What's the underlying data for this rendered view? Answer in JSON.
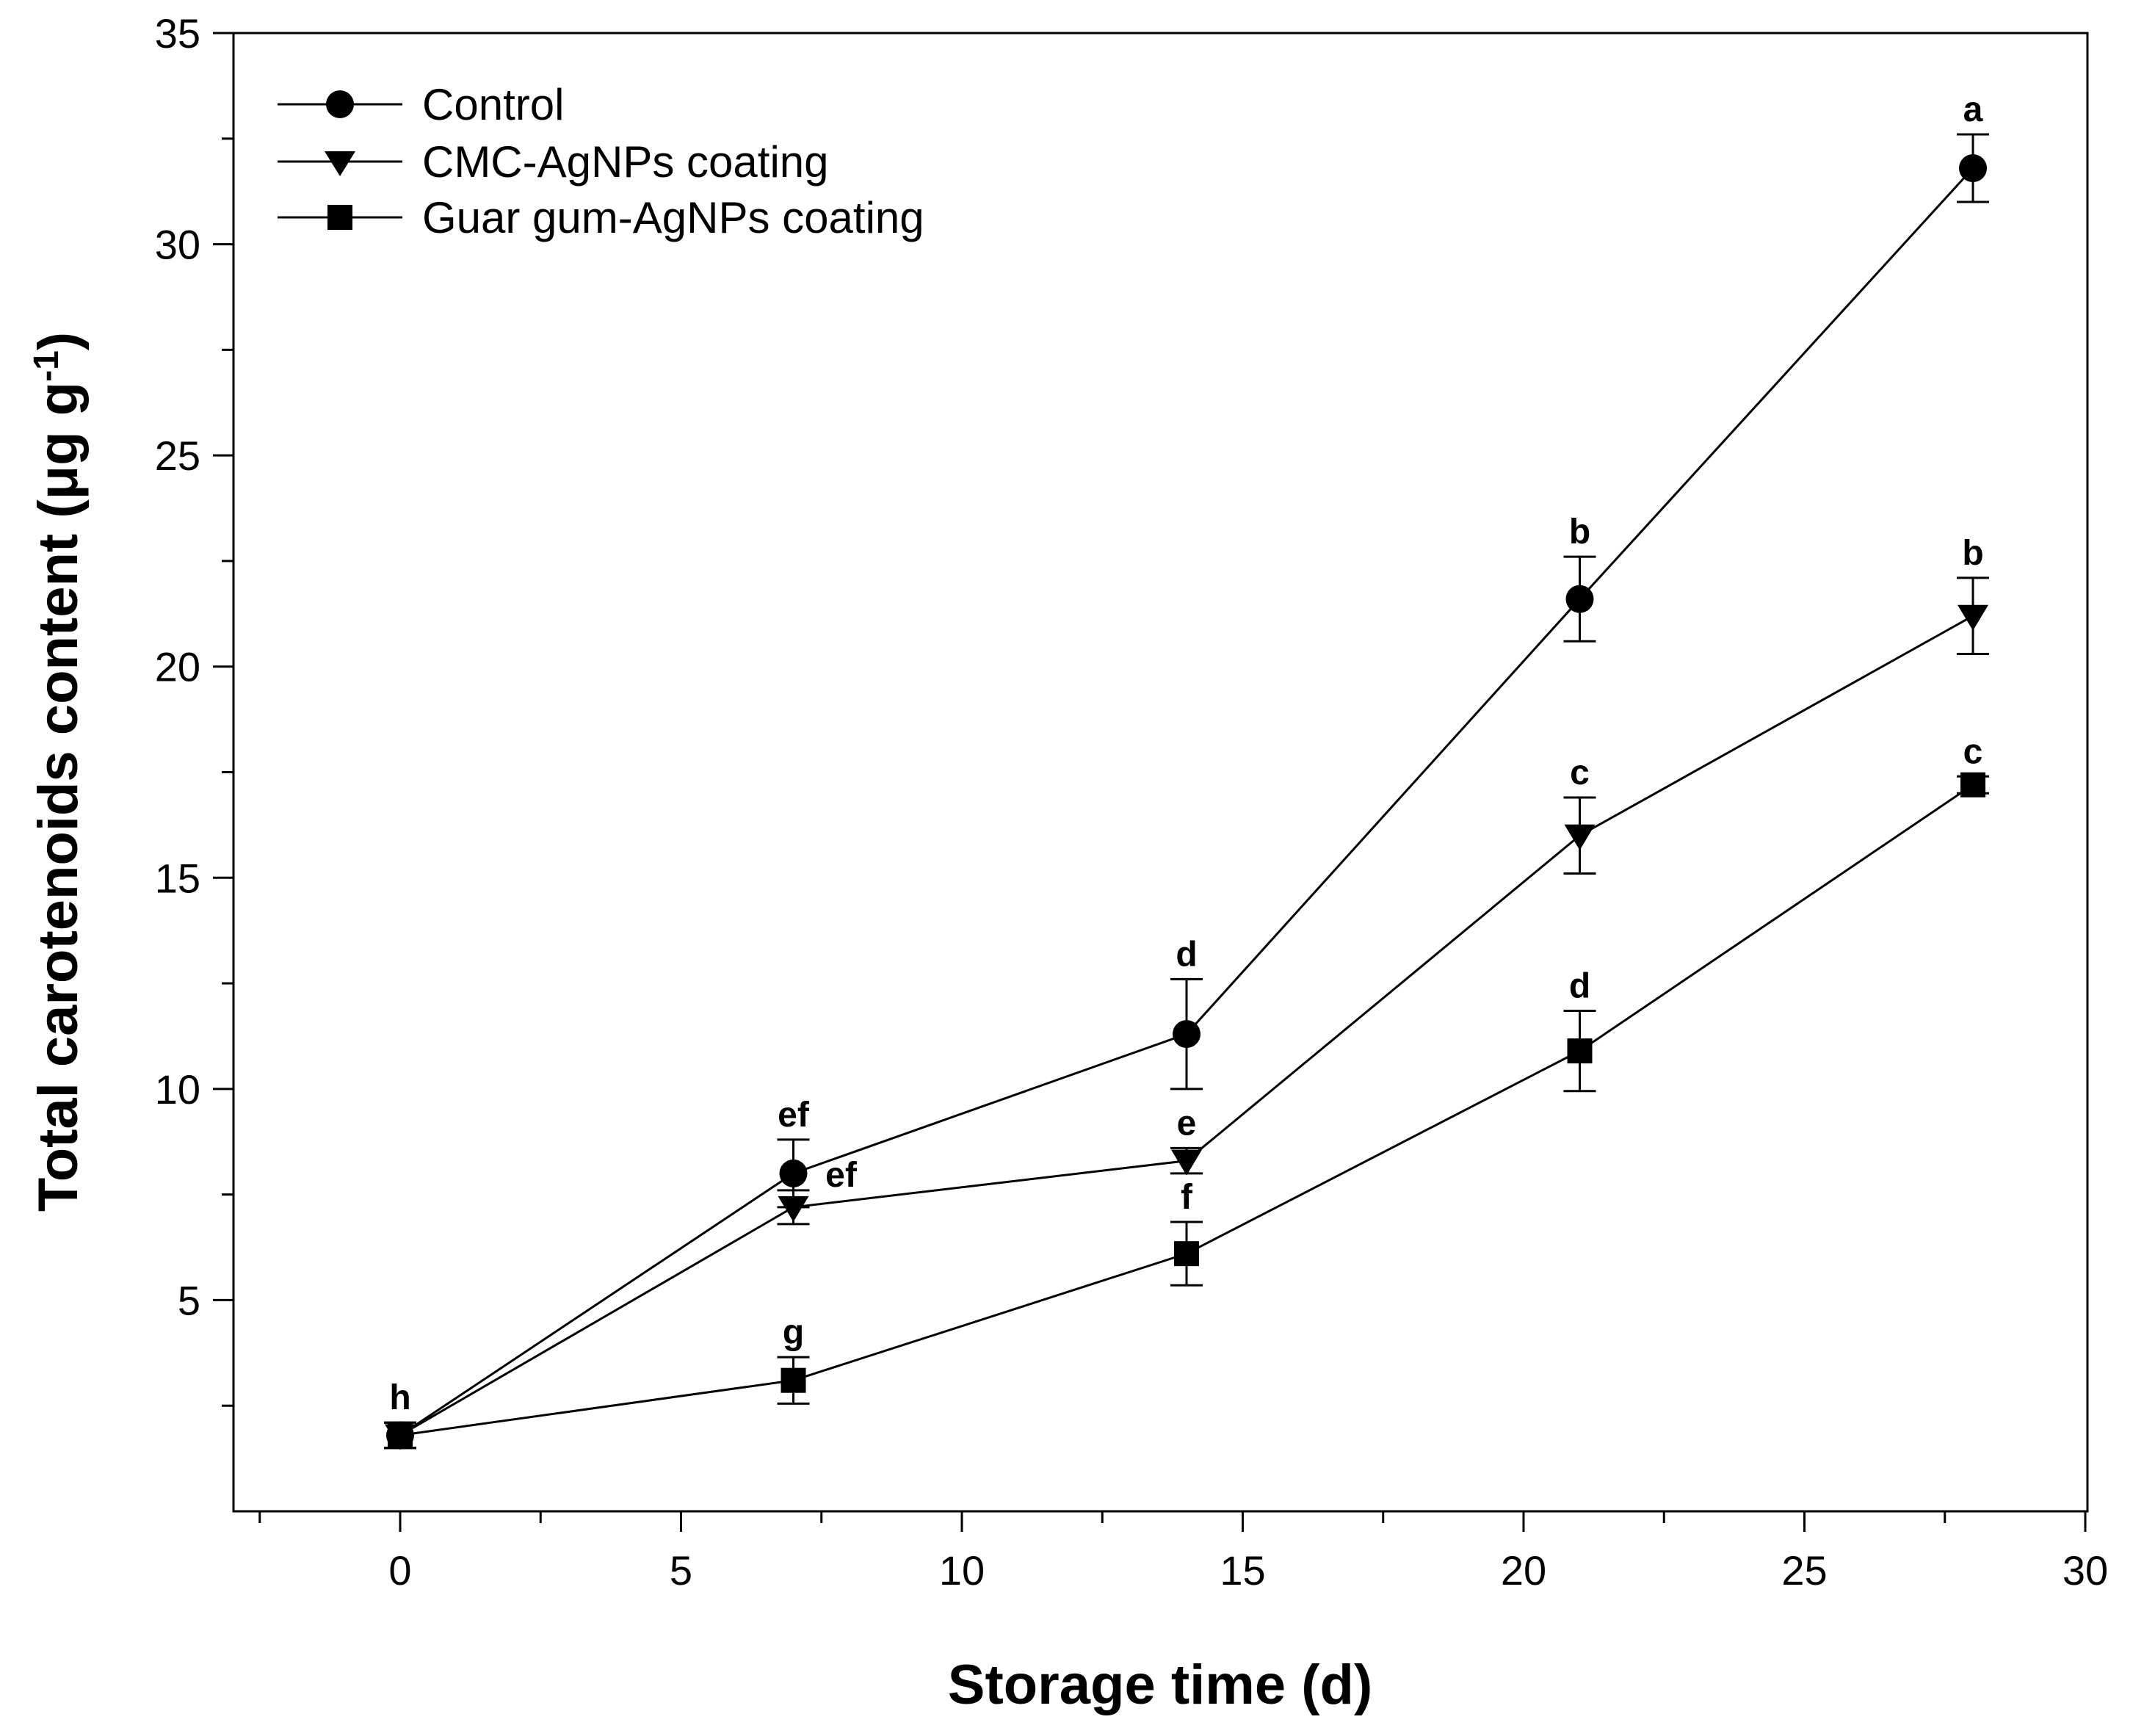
{
  "chart_data": {
    "type": "line",
    "title": "",
    "xlabel": "Storage time (d)",
    "ylabel_main": "Total carotenoids content (μg g",
    "ylabel_sup": "-1",
    "ylabel_close": ")",
    "xlim": [
      -2.5,
      30
    ],
    "ylim": [
      0,
      35
    ],
    "xticks": [
      0,
      5,
      10,
      15,
      20,
      25,
      30
    ],
    "xtick_labels": [
      "0",
      "5",
      "10",
      "15",
      "20",
      "25",
      "30"
    ],
    "xminor": [
      -2.5,
      2.5,
      7.5,
      12.5,
      17.5,
      22.5,
      27.5
    ],
    "yticks": [
      5,
      10,
      15,
      20,
      25,
      30,
      35
    ],
    "ytick_labels": [
      "5",
      "10",
      "15",
      "20",
      "25",
      "30",
      "35"
    ],
    "yminor": [
      2.5,
      7.5,
      12.5,
      17.5,
      22.5,
      27.5,
      32.5
    ],
    "grid": false,
    "legend_position": "top-left",
    "x": [
      0,
      7,
      14,
      21,
      28
    ],
    "series": [
      {
        "name": "Control",
        "marker": "circle",
        "values": [
          1.8,
          8.0,
          11.3,
          21.6,
          31.8
        ],
        "errors": [
          0.3,
          0.8,
          1.3,
          1.0,
          0.8
        ],
        "labels": [
          "h",
          "ef",
          "d",
          "b",
          "a"
        ]
      },
      {
        "name": "CMC-AgNPs coating",
        "marker": "triangle-down",
        "values": [
          1.8,
          7.2,
          8.3,
          16.0,
          21.2
        ],
        "errors": [
          0.3,
          0.4,
          0.3,
          0.9,
          0.9
        ],
        "labels": [
          "",
          "ef",
          "e",
          "c",
          "b"
        ]
      },
      {
        "name": "Guar gum-AgNPs coating",
        "marker": "square",
        "values": [
          1.8,
          3.1,
          6.1,
          10.9,
          17.2
        ],
        "errors": [
          0.3,
          0.55,
          0.75,
          0.95,
          0.2
        ],
        "labels": [
          "",
          "g",
          "f",
          "d",
          "c"
        ]
      }
    ],
    "colors": {
      "line": "#000000",
      "marker": "#000000",
      "background": "#ffffff"
    }
  }
}
